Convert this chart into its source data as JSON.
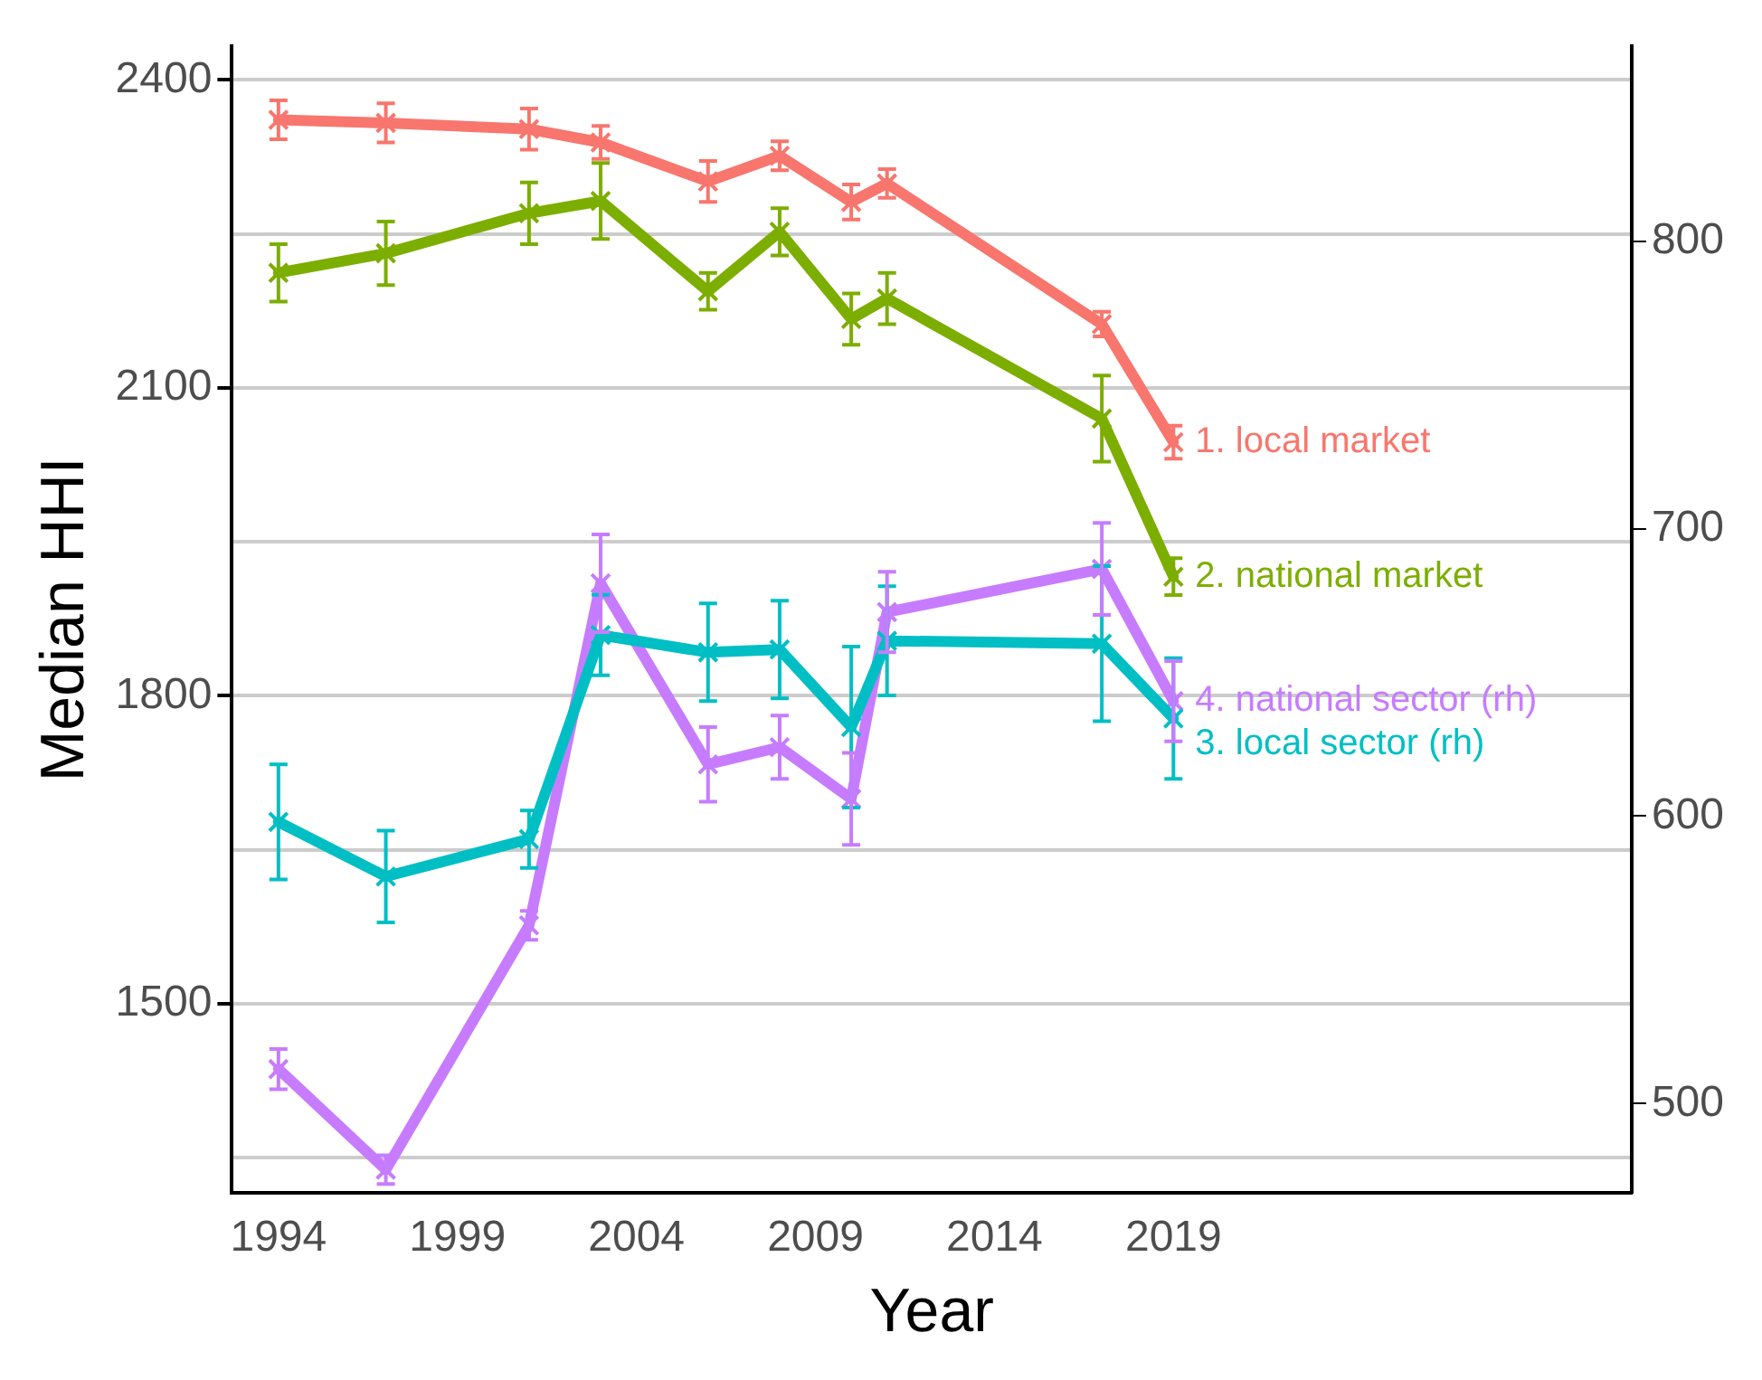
{
  "chart_data": {
    "type": "line",
    "xlabel": "Year",
    "ylabel": "Median HHI",
    "xlim": [
      1992.7,
      2031.8
    ],
    "xticks": [
      1994,
      1999,
      2004,
      2009,
      2014,
      2019
    ],
    "ylim": [
      1316,
      2433
    ],
    "yticks": [
      {
        "value": 1350,
        "label": null
      },
      1500,
      {
        "value": 1650,
        "label": null
      },
      1800,
      {
        "value": 1950,
        "label": null
      },
      2100,
      {
        "value": 2250,
        "label": null
      },
      2400
    ],
    "y2lim": [
      469,
      868
    ],
    "y2ticks": [
      500,
      600,
      700,
      800
    ],
    "grid": "y",
    "legend": false,
    "marker": "cross",
    "line_style": "solid",
    "x": [
      1994,
      1997,
      2001,
      2003,
      2006,
      2008,
      2010,
      2011,
      2017,
      2019
    ],
    "series": [
      {
        "name": "1. local market",
        "color": "#f8766d",
        "values": [
          2361,
          2358,
          2352,
          2339,
          2301,
          2326,
          2281,
          2299,
          2162,
          2047
        ],
        "errors": [
          19,
          19,
          20,
          16,
          20,
          14,
          17,
          14,
          12,
          16
        ]
      },
      {
        "name": "2. national market",
        "color": "#7cae00",
        "values": [
          2212,
          2231,
          2270,
          2282,
          2194,
          2252,
          2167,
          2187,
          2070,
          1916
        ],
        "errors": [
          28,
          31,
          30,
          37,
          18,
          23,
          25,
          25,
          42,
          18
        ]
      },
      {
        "name": "3. local sector (rh)",
        "color": "#00bfc4",
        "axis": "y2",
        "values": [
          598,
          579,
          592,
          663,
          657,
          658,
          631,
          661,
          660,
          634
        ],
        "errors": [
          20,
          16,
          10,
          14,
          17,
          17,
          28,
          19,
          27,
          21
        ]
      },
      {
        "name": "4. national sector (rh)",
        "color": "#c77cff",
        "axis": "y2",
        "values": [
          512,
          477,
          562,
          681,
          618,
          624,
          606,
          671,
          686,
          640
        ],
        "errors": [
          7,
          5,
          5,
          17,
          13,
          11,
          16,
          14,
          16,
          14
        ]
      }
    ]
  }
}
